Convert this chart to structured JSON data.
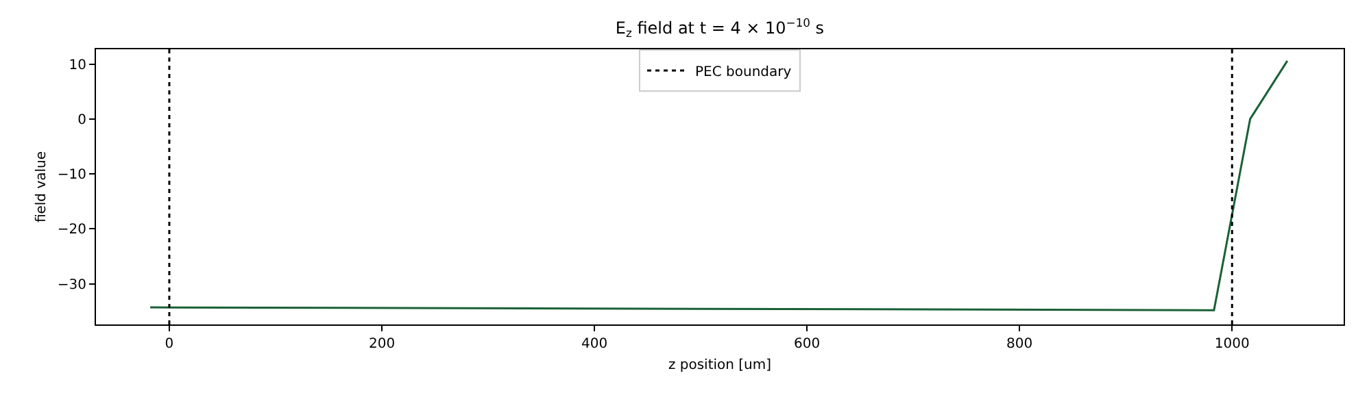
{
  "chart_data": {
    "type": "line",
    "title": "E$_{z}$ field at t = 4 × 10$^{−10}$ s",
    "xlabel": "z position [um]",
    "ylabel": "field value",
    "x": [
      -18,
      983,
      1017,
      1052
    ],
    "series": [
      {
        "color": "#1a6136",
        "values": [
          -34.3,
          -34.8,
          0,
          10.6
        ]
      }
    ],
    "xlim": [
      -69,
      1105
    ],
    "xticks": [
      0,
      200,
      400,
      600,
      800,
      1000
    ],
    "ylim": [
      -37.4,
      12.7
    ],
    "yticks": [
      -30,
      -20,
      -10,
      0,
      10
    ],
    "ref_lines": [
      {
        "axis": "x",
        "value": 0,
        "label": "PEC boundary",
        "color": "#000000",
        "line_style": "dotted"
      },
      {
        "axis": "x",
        "value": 1000,
        "color": "#000000",
        "line_style": "dotted"
      }
    ],
    "grid": false,
    "legend": "top",
    "marker": "none",
    "line_style": "solid"
  }
}
